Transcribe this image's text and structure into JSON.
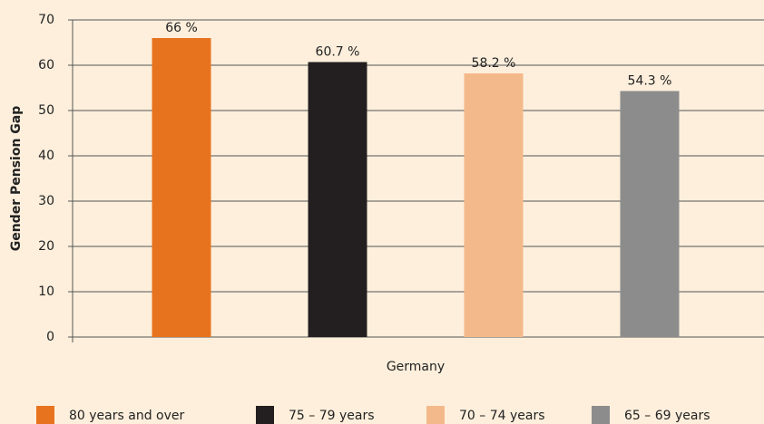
{
  "chart_data": {
    "type": "bar",
    "y_label": "Gender Pension Gap",
    "categories": [
      "Germany"
    ],
    "series": [
      {
        "name": "80 years and over",
        "color": "#e8731e",
        "values": [
          66
        ],
        "value_labels": [
          "66 %"
        ]
      },
      {
        "name": "75 – 79 years",
        "color": "#231f20",
        "values": [
          60.7
        ],
        "value_labels": [
          "60.7 %"
        ]
      },
      {
        "name": "70 – 74 years",
        "color": "#f4b98a",
        "values": [
          58.2
        ],
        "value_labels": [
          "58.2 %"
        ]
      },
      {
        "name": "65 – 69 years",
        "color": "#8c8c8c",
        "values": [
          54.3
        ],
        "value_labels": [
          "54.3 %"
        ]
      }
    ],
    "ylim": [
      0,
      70
    ],
    "yticks": [
      0,
      10,
      20,
      30,
      40,
      50,
      60,
      70
    ],
    "grid": true
  }
}
